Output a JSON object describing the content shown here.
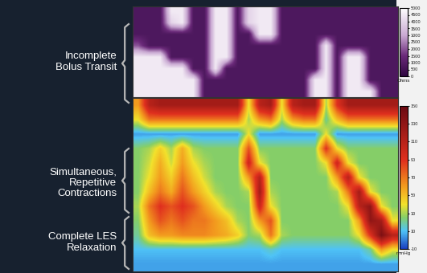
{
  "chart_data": [
    {
      "type": "heatmap",
      "annotations": [
        "Incomplete\nBolus Transit"
      ],
      "tick_labels": false,
      "cells": [
        [
          800,
          800,
          800,
          4500,
          4500,
          800,
          800,
          4500,
          4500,
          800,
          4000,
          4500,
          4500,
          800,
          800,
          800,
          800,
          800,
          800,
          800,
          800,
          800,
          800,
          800
        ],
        [
          800,
          800,
          800,
          4000,
          4500,
          800,
          800,
          4500,
          4500,
          800,
          4000,
          4500,
          4500,
          800,
          800,
          800,
          800,
          800,
          800,
          800,
          800,
          800,
          800,
          800
        ],
        [
          800,
          800,
          800,
          800,
          800,
          800,
          800,
          4500,
          4500,
          800,
          800,
          4500,
          4500,
          800,
          800,
          800,
          800,
          800,
          800,
          800,
          800,
          800,
          800,
          800
        ],
        [
          2000,
          800,
          800,
          800,
          800,
          800,
          800,
          4500,
          4500,
          800,
          800,
          800,
          800,
          800,
          800,
          800,
          800,
          4500,
          800,
          800,
          800,
          800,
          800,
          800
        ],
        [
          4500,
          4500,
          4500,
          800,
          800,
          800,
          800,
          4500,
          4500,
          800,
          800,
          800,
          800,
          800,
          800,
          800,
          800,
          4500,
          800,
          4500,
          4500,
          800,
          800,
          800
        ],
        [
          4500,
          4500,
          4500,
          4500,
          4500,
          800,
          800,
          4500,
          800,
          800,
          800,
          800,
          800,
          800,
          800,
          800,
          800,
          4500,
          800,
          4500,
          4500,
          800,
          800,
          800
        ],
        [
          4500,
          4500,
          4500,
          4500,
          4500,
          4500,
          800,
          800,
          800,
          800,
          800,
          800,
          800,
          800,
          800,
          800,
          4500,
          4500,
          800,
          4500,
          4500,
          800,
          800,
          800
        ],
        [
          4500,
          4500,
          4500,
          4500,
          4500,
          4500,
          800,
          800,
          800,
          800,
          800,
          800,
          800,
          800,
          800,
          800,
          4500,
          4500,
          800,
          4500,
          4500,
          4500,
          800,
          800
        ]
      ],
      "colorbar": {
        "range": [
          0,
          5000
        ],
        "ticks": [
          0,
          500,
          1000,
          1500,
          2000,
          2500,
          3000,
          3500,
          4000,
          4500,
          5000
        ],
        "label": "Ohms"
      }
    },
    {
      "type": "heatmap",
      "annotations": [
        "Simultaneous,\nRepetitive\nContractions",
        "Complete LES\nRelaxation"
      ],
      "tick_labels": false,
      "cells": [
        [
          60,
          110,
          120,
          120,
          120,
          120,
          120,
          120,
          120,
          120,
          40,
          110,
          120,
          40,
          110,
          120,
          120,
          30,
          90,
          120,
          120,
          120,
          120,
          120
        ],
        [
          40,
          70,
          70,
          70,
          70,
          70,
          70,
          70,
          70,
          70,
          30,
          60,
          70,
          30,
          60,
          70,
          70,
          20,
          50,
          70,
          70,
          70,
          70,
          70
        ],
        [
          5,
          5,
          5,
          5,
          5,
          5,
          5,
          5,
          5,
          5,
          40,
          5,
          5,
          5,
          5,
          5,
          5,
          40,
          5,
          5,
          5,
          5,
          5,
          5
        ],
        [
          25,
          30,
          45,
          30,
          55,
          30,
          25,
          25,
          25,
          25,
          80,
          25,
          25,
          25,
          25,
          25,
          25,
          90,
          40,
          25,
          25,
          25,
          25,
          25
        ],
        [
          25,
          35,
          55,
          35,
          60,
          40,
          30,
          25,
          25,
          25,
          100,
          40,
          25,
          25,
          25,
          25,
          25,
          40,
          100,
          40,
          25,
          25,
          25,
          25
        ],
        [
          25,
          40,
          60,
          45,
          70,
          50,
          35,
          25,
          25,
          25,
          60,
          110,
          25,
          25,
          25,
          25,
          25,
          25,
          60,
          110,
          40,
          25,
          25,
          25
        ],
        [
          25,
          50,
          70,
          55,
          80,
          60,
          45,
          30,
          25,
          25,
          30,
          120,
          30,
          25,
          25,
          25,
          25,
          25,
          30,
          70,
          120,
          40,
          25,
          25
        ],
        [
          30,
          70,
          90,
          80,
          90,
          80,
          60,
          45,
          30,
          25,
          25,
          100,
          40,
          25,
          25,
          25,
          25,
          25,
          25,
          40,
          110,
          130,
          40,
          25
        ],
        [
          25,
          60,
          80,
          70,
          80,
          70,
          70,
          60,
          50,
          30,
          25,
          60,
          80,
          25,
          25,
          25,
          25,
          25,
          25,
          25,
          60,
          130,
          120,
          40
        ],
        [
          20,
          50,
          60,
          60,
          65,
          65,
          65,
          60,
          55,
          45,
          25,
          30,
          70,
          30,
          25,
          25,
          25,
          25,
          25,
          25,
          40,
          90,
          140,
          110
        ],
        [
          10,
          10,
          10,
          10,
          10,
          10,
          10,
          10,
          10,
          10,
          10,
          10,
          15,
          10,
          10,
          10,
          10,
          10,
          10,
          10,
          10,
          20,
          60,
          40
        ],
        [
          5,
          5,
          5,
          5,
          5,
          5,
          5,
          5,
          5,
          5,
          5,
          5,
          5,
          5,
          5,
          5,
          5,
          5,
          5,
          5,
          5,
          5,
          5,
          5
        ]
      ],
      "colorbar": {
        "range": [
          -10,
          150
        ],
        "ticks": [
          -10,
          10,
          30,
          50,
          70,
          90,
          110,
          130,
          150
        ],
        "label": "mmHg"
      }
    }
  ]
}
